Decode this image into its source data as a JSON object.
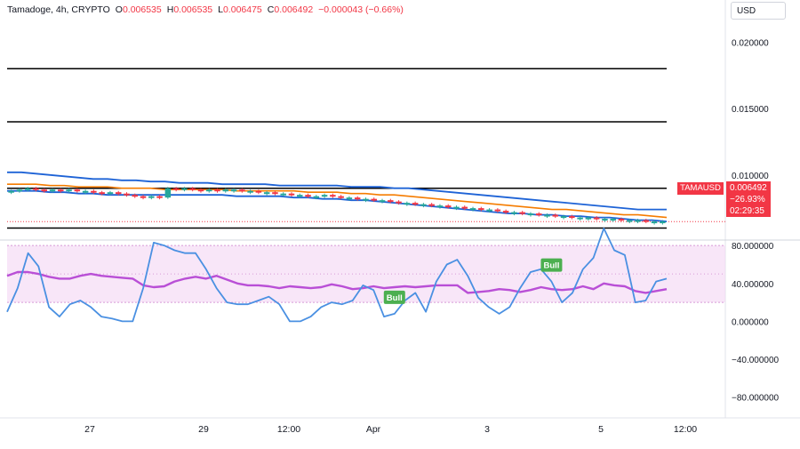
{
  "header": {
    "symbol_line": "Tamadoge, 4h, CRYPTO",
    "o_label": "O",
    "o_value": "0.006535",
    "h_label": "H",
    "h_value": "0.006535",
    "l_label": "L",
    "l_value": "0.006475",
    "c_label": "C",
    "c_value": "0.006492",
    "change": "−0.000043 (−0.66%)"
  },
  "currency_button": "USD",
  "price_tag": {
    "symbol": "TAMAUSD",
    "price": "0.006492",
    "change_pct": "−26.93%",
    "countdown": "02:29:35"
  },
  "colors": {
    "up": "#26a69a",
    "down": "#f23645",
    "bands_upper": "#1e63d6",
    "bands_lower": "#1e63d6",
    "ma": "#f57c00",
    "rsi_fast": "#4a90e2",
    "rsi_slow": "#b94fd6",
    "band_bg": "#f3d5f3",
    "bull": "#4caf50"
  },
  "chart_data": [
    {
      "type": "line",
      "panel": "price",
      "yticks": [
        "0.020000",
        "0.015000",
        "0.010000"
      ],
      "ytick_values": [
        0.02,
        0.015,
        0.01
      ],
      "ylim": [
        0.0055,
        0.0217
      ],
      "xticks": [
        "27",
        "29",
        "12:00",
        "Apr",
        "3",
        "5",
        "12:00"
      ],
      "horizontal_levels": [
        0.018,
        0.014,
        0.009,
        0.006
      ],
      "candles_close": [
        0.0088,
        0.0089,
        0.009,
        0.0089,
        0.0088,
        0.0089,
        0.0088,
        0.0089,
        0.0088,
        0.0088,
        0.0087,
        0.0086,
        0.0087,
        0.0086,
        0.0085,
        0.0084,
        0.0083,
        0.0084,
        0.0083,
        0.009,
        0.0089,
        0.009,
        0.0089,
        0.0088,
        0.0089,
        0.0088,
        0.0089,
        0.0089,
        0.0088,
        0.0088,
        0.0087,
        0.0087,
        0.0086,
        0.0086,
        0.0085,
        0.0085,
        0.0084,
        0.0084,
        0.0085,
        0.0084,
        0.0083,
        0.0083,
        0.0082,
        0.0082,
        0.0081,
        0.0081,
        0.008,
        0.0079,
        0.0079,
        0.0078,
        0.0078,
        0.0077,
        0.0077,
        0.0076,
        0.0076,
        0.0075,
        0.0075,
        0.0074,
        0.0074,
        0.0073,
        0.0072,
        0.0072,
        0.0071,
        0.0071,
        0.007,
        0.007,
        0.0069,
        0.0069,
        0.0068,
        0.0068,
        0.0068,
        0.0067,
        0.0067,
        0.0067,
        0.0066,
        0.0066,
        0.0066,
        0.0065,
        0.0065,
        0.0065
      ],
      "upper_band": [
        0.0102,
        0.0102,
        0.0101,
        0.01,
        0.0099,
        0.0098,
        0.0097,
        0.0097,
        0.0096,
        0.0096,
        0.0095,
        0.0095,
        0.0094,
        0.0094,
        0.0094,
        0.0093,
        0.0093,
        0.0093,
        0.0093,
        0.0092,
        0.0092,
        0.0092,
        0.0092,
        0.0092,
        0.0091,
        0.0091,
        0.0091,
        0.009,
        0.009,
        0.0089,
        0.0088,
        0.0087,
        0.0086,
        0.0085,
        0.0084,
        0.0083,
        0.0082,
        0.0081,
        0.008,
        0.0079,
        0.0078,
        0.0077,
        0.0076,
        0.0075,
        0.0074,
        0.0074,
        0.0074
      ],
      "lower_band": [
        0.0088,
        0.0088,
        0.0088,
        0.0087,
        0.0087,
        0.0086,
        0.0086,
        0.0085,
        0.0085,
        0.0085,
        0.0085,
        0.0085,
        0.0085,
        0.0085,
        0.0085,
        0.0085,
        0.0084,
        0.0084,
        0.0084,
        0.0084,
        0.0083,
        0.0083,
        0.0082,
        0.0082,
        0.0081,
        0.0081,
        0.008,
        0.0079,
        0.0078,
        0.0077,
        0.0076,
        0.0075,
        0.0074,
        0.0073,
        0.0072,
        0.0071,
        0.0071,
        0.007,
        0.007,
        0.0069,
        0.0069,
        0.0068,
        0.0068,
        0.0067,
        0.0066,
        0.0066,
        0.0065
      ],
      "ma_line": [
        0.0093,
        0.0093,
        0.0093,
        0.0092,
        0.0092,
        0.0091,
        0.0091,
        0.0091,
        0.009,
        0.009,
        0.009,
        0.0089,
        0.0089,
        0.0089,
        0.0089,
        0.0089,
        0.0088,
        0.0088,
        0.0088,
        0.0088,
        0.0088,
        0.0087,
        0.0087,
        0.0087,
        0.0086,
        0.0086,
        0.0085,
        0.0085,
        0.0084,
        0.0083,
        0.0082,
        0.0081,
        0.008,
        0.0079,
        0.0078,
        0.0077,
        0.0076,
        0.0075,
        0.0074,
        0.0074,
        0.0073,
        0.0072,
        0.0071,
        0.007,
        0.007,
        0.0069,
        0.0068
      ]
    },
    {
      "type": "line",
      "panel": "oscillator",
      "yticks": [
        "80.000000",
        "40.000000",
        "0.000000",
        "−40.000000",
        "−80.000000"
      ],
      "ytick_values": [
        80,
        40,
        0,
        -40,
        -80
      ],
      "ylim": [
        -100,
        82
      ],
      "band": [
        20,
        80
      ],
      "midline": 50,
      "rsi_fast": [
        10,
        35,
        72,
        58,
        15,
        5,
        18,
        22,
        15,
        5,
        3,
        0,
        0,
        35,
        83,
        80,
        75,
        72,
        72,
        55,
        35,
        20,
        18,
        18,
        22,
        26,
        18,
        0,
        0,
        5,
        15,
        20,
        18,
        22,
        38,
        33,
        5,
        8,
        22,
        30,
        10,
        42,
        60,
        65,
        48,
        25,
        15,
        8,
        15,
        35,
        52,
        55,
        42,
        20,
        30,
        55,
        67,
        98,
        75,
        70,
        20,
        22,
        42,
        45
      ],
      "rsi_slow": [
        48,
        52,
        52,
        50,
        47,
        45,
        45,
        48,
        50,
        48,
        47,
        46,
        45,
        38,
        36,
        37,
        42,
        45,
        47,
        45,
        48,
        44,
        40,
        38,
        38,
        37,
        35,
        37,
        36,
        35,
        36,
        39,
        37,
        34,
        35,
        37,
        35,
        36,
        37,
        36,
        37,
        38,
        38,
        38,
        30,
        31,
        32,
        34,
        33,
        31,
        33,
        36,
        34,
        33,
        34,
        37,
        34,
        40,
        38,
        37,
        32,
        30,
        32,
        34
      ],
      "bull_labels": [
        "Bull",
        "Bull"
      ]
    }
  ]
}
